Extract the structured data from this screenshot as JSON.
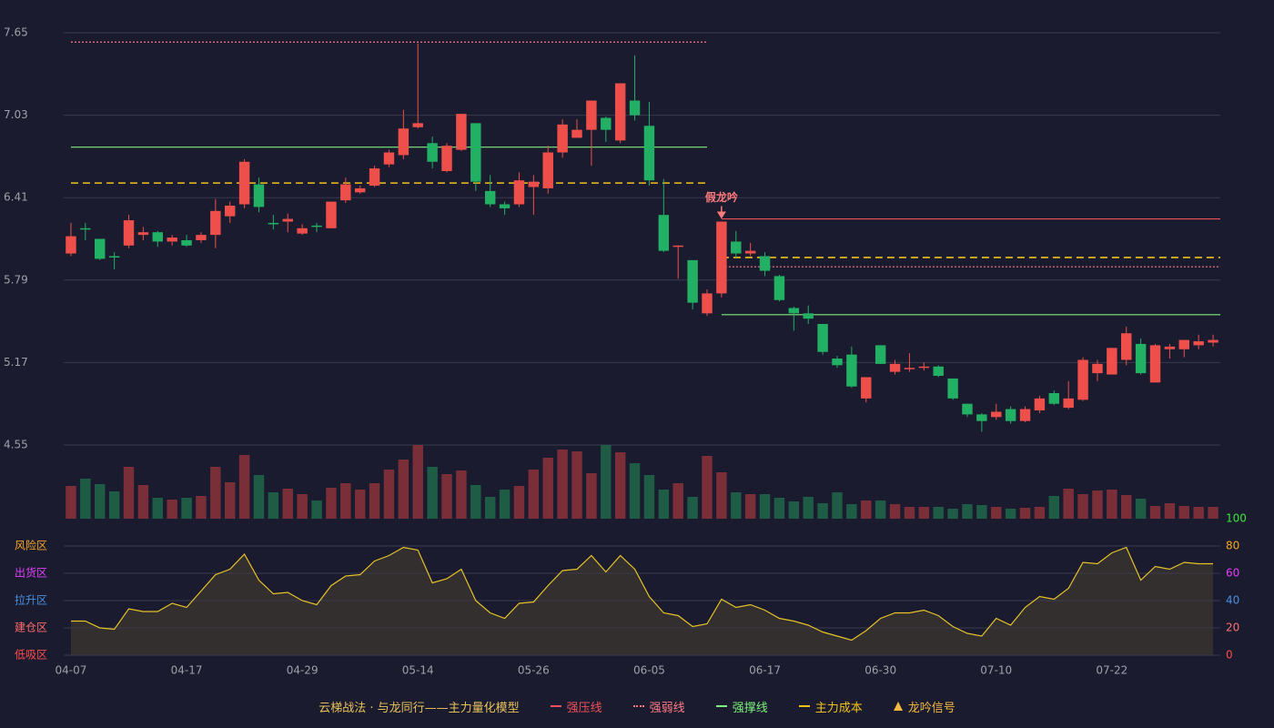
{
  "chart_data": {
    "type": "candlestick",
    "categories": [
      "04-07",
      null,
      null,
      null,
      null,
      null,
      null,
      null,
      "04-17",
      null,
      null,
      null,
      null,
      null,
      null,
      null,
      "04-29",
      null,
      null,
      null,
      null,
      null,
      null,
      null,
      "05-14",
      null,
      null,
      null,
      null,
      null,
      null,
      null,
      "05-26",
      null,
      null,
      null,
      null,
      null,
      null,
      null,
      "06-05",
      null,
      null,
      null,
      null,
      null,
      null,
      null,
      "06-17",
      null,
      null,
      null,
      null,
      null,
      null,
      null,
      "06-30",
      null,
      null,
      null,
      null,
      null,
      null,
      null,
      "07-10",
      null,
      null,
      null,
      null,
      null,
      null,
      null,
      "07-22",
      null,
      null,
      null,
      null,
      null,
      null,
      null
    ],
    "open": [
      5.99,
      6.18,
      6.1,
      5.97,
      6.05,
      6.13,
      6.15,
      6.08,
      6.09,
      6.09,
      6.13,
      6.27,
      6.36,
      6.51,
      6.22,
      6.23,
      6.14,
      6.2,
      6.18,
      6.39,
      6.45,
      6.5,
      6.66,
      6.73,
      6.94,
      6.82,
      6.61,
      6.77,
      6.97,
      6.46,
      6.36,
      6.36,
      6.49,
      6.48,
      6.75,
      6.86,
      6.92,
      7.01,
      6.84,
      7.14,
      6.95,
      6.28,
      6.04,
      5.94,
      5.54,
      5.69,
      6.08,
      5.99,
      5.97,
      5.82,
      5.58,
      5.54,
      5.46,
      5.2,
      5.23,
      4.9,
      5.3,
      5.1,
      5.13,
      5.13,
      5.14,
      5.05,
      4.86,
      4.78,
      4.76,
      4.82,
      4.73,
      4.81,
      4.94,
      4.83,
      4.89,
      5.09,
      5.08,
      5.19,
      5.31,
      5.02,
      5.27,
      5.27,
      5.3,
      5.32
    ],
    "close": [
      6.12,
      6.17,
      5.95,
      5.96,
      6.24,
      6.15,
      6.08,
      6.11,
      6.05,
      6.13,
      6.31,
      6.35,
      6.68,
      6.34,
      6.21,
      6.25,
      6.18,
      6.19,
      6.38,
      6.51,
      6.48,
      6.63,
      6.75,
      6.93,
      6.97,
      6.68,
      6.8,
      7.04,
      6.53,
      6.36,
      6.33,
      6.54,
      6.53,
      6.75,
      6.96,
      6.92,
      7.14,
      6.92,
      7.27,
      7.03,
      6.54,
      6.01,
      6.05,
      5.62,
      5.69,
      6.23,
      5.99,
      6.01,
      5.86,
      5.64,
      5.54,
      5.5,
      5.25,
      5.15,
      4.99,
      5.06,
      5.16,
      5.16,
      5.13,
      5.14,
      5.07,
      4.9,
      4.78,
      4.73,
      4.8,
      4.73,
      4.82,
      4.9,
      4.86,
      4.9,
      5.19,
      5.16,
      5.28,
      5.39,
      5.09,
      5.3,
      5.29,
      5.34,
      5.33,
      5.34
    ],
    "high": [
      6.22,
      6.22,
      6.1,
      6.0,
      6.28,
      6.19,
      6.16,
      6.13,
      6.13,
      6.15,
      6.4,
      6.38,
      6.7,
      6.56,
      6.28,
      6.29,
      6.21,
      6.22,
      6.38,
      6.56,
      6.5,
      6.65,
      6.77,
      7.07,
      7.57,
      6.87,
      6.82,
      7.04,
      6.97,
      6.58,
      6.38,
      6.6,
      6.58,
      6.8,
      7.0,
      7.0,
      7.14,
      7.02,
      7.27,
      7.48,
      7.13,
      6.55,
      6.05,
      5.94,
      5.72,
      6.23,
      6.16,
      6.07,
      6.0,
      5.83,
      5.59,
      5.6,
      5.46,
      5.22,
      5.29,
      5.06,
      5.3,
      5.19,
      5.24,
      5.17,
      5.15,
      5.05,
      4.86,
      4.79,
      4.86,
      4.84,
      4.84,
      4.92,
      4.96,
      5.03,
      5.21,
      5.19,
      5.28,
      5.44,
      5.35,
      5.31,
      5.31,
      5.34,
      5.38,
      5.38
    ],
    "low": [
      5.97,
      6.09,
      5.94,
      5.87,
      6.03,
      6.09,
      6.04,
      6.05,
      6.04,
      6.07,
      6.03,
      6.22,
      6.33,
      6.3,
      6.17,
      6.15,
      6.13,
      6.15,
      6.18,
      6.37,
      6.44,
      6.49,
      6.64,
      6.7,
      6.93,
      6.63,
      6.6,
      6.76,
      6.46,
      6.34,
      6.28,
      6.34,
      6.28,
      6.44,
      6.71,
      6.86,
      6.65,
      6.83,
      6.82,
      6.99,
      6.5,
      6.0,
      5.8,
      5.57,
      5.52,
      5.66,
      5.96,
      5.97,
      5.82,
      5.63,
      5.41,
      5.46,
      5.23,
      5.13,
      4.98,
      4.87,
      5.16,
      5.08,
      5.1,
      5.11,
      5.06,
      4.89,
      4.76,
      4.65,
      4.74,
      4.71,
      4.72,
      4.79,
      4.85,
      4.82,
      4.88,
      5.03,
      5.08,
      5.15,
      5.08,
      5.02,
      5.2,
      5.21,
      5.27,
      5.29
    ],
    "up_color": "#ef4f4a",
    "down_color": "#22b064",
    "ylim": [
      4.55,
      7.65
    ],
    "yticks": [
      4.55,
      5.17,
      5.79,
      6.41,
      7.03,
      7.65
    ],
    "grid": true,
    "levels": [
      {
        "name": "强压线",
        "style": "solid",
        "color": "#f0505a",
        "segments": [
          {
            "range": [
              45,
              79
            ],
            "value": 6.25
          }
        ]
      },
      {
        "name": "强弱线",
        "style": "dotted",
        "color": "#ff7a85",
        "segments": [
          {
            "range": [
              0,
              44
            ],
            "value": 7.58
          },
          {
            "range": [
              45,
              79
            ],
            "value": 5.89
          }
        ]
      },
      {
        "name": "强撑线",
        "style": "solid",
        "color": "#7ef07e",
        "segments": [
          {
            "range": [
              0,
              44
            ],
            "value": 6.79
          },
          {
            "range": [
              45,
              79
            ],
            "value": 5.53
          }
        ]
      },
      {
        "name": "主力成本",
        "style": "dashed",
        "color": "#f2c21a",
        "segments": [
          {
            "range": [
              0,
              44
            ],
            "value": 6.52
          },
          {
            "range": [
              45,
              79
            ],
            "value": 5.96
          }
        ]
      }
    ],
    "signals": [
      {
        "index": 45,
        "label": "假龙吟"
      }
    ],
    "signal_legend": "龙吟信号",
    "signal_color": "#f5b942",
    "signal_label_color": "#ff7a7a",
    "volume": {
      "values": [
        36,
        44,
        38,
        30,
        57,
        37,
        23,
        21,
        23,
        25,
        57,
        40,
        70,
        48,
        29,
        33,
        27,
        20,
        34,
        39,
        32,
        39,
        54,
        65,
        81,
        57,
        49,
        53,
        37,
        24,
        32,
        36,
        54,
        67,
        76,
        74,
        50,
        81,
        73,
        61,
        48,
        32,
        39,
        24,
        69,
        51,
        29,
        27,
        27,
        23,
        19,
        24,
        17,
        29,
        16,
        20,
        20,
        16,
        13,
        13,
        13,
        11,
        16,
        15,
        13,
        11,
        12,
        13,
        25,
        33,
        27,
        31,
        32,
        26,
        22,
        14,
        17,
        14,
        13,
        13
      ],
      "ylim": [
        0,
        81
      ],
      "up_color": "#7a2f38",
      "down_color": "#1f5c46"
    },
    "indicator": {
      "values": [
        25,
        25,
        20,
        19,
        34,
        32,
        32,
        38,
        35,
        47,
        59,
        63,
        74,
        55,
        45,
        46,
        40,
        37,
        51,
        58,
        59,
        69,
        73,
        79,
        77,
        53,
        56,
        63,
        40,
        31,
        27,
        38,
        39,
        51,
        62,
        63,
        73,
        61,
        73,
        63,
        43,
        31,
        29,
        21,
        23,
        41,
        35,
        37,
        33,
        27,
        25,
        22,
        17,
        14,
        11,
        18,
        27,
        31,
        31,
        33,
        29,
        21,
        16,
        14,
        27,
        22,
        35,
        43,
        41,
        49,
        68,
        67,
        75,
        79,
        55,
        65,
        63,
        68,
        67,
        67
      ],
      "color": "#e6c229",
      "ylim": [
        0,
        100
      ],
      "yticks": [
        0,
        20,
        40,
        60,
        80,
        100
      ],
      "ytick_colors": [
        "#ff4d4d",
        "#ff7070",
        "#4a90e2",
        "#e040fb",
        "#f5a623",
        "#39e639"
      ],
      "zones": [
        {
          "value": 80,
          "label": "风险区",
          "color": "#f5a623"
        },
        {
          "value": 60,
          "label": "出货区",
          "color": "#e040fb"
        },
        {
          "value": 40,
          "label": "拉升区",
          "color": "#4a90e2"
        },
        {
          "value": 20,
          "label": "建仓区",
          "color": "#ff6b6b"
        },
        {
          "value": 0,
          "label": "低吸区",
          "color": "#ff4d4d"
        }
      ]
    },
    "legend_title": "云梯战法 · 与龙同行——主力量化模型"
  }
}
